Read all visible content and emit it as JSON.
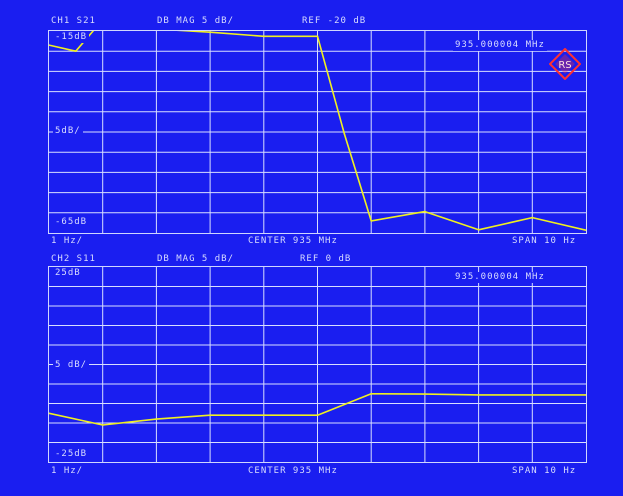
{
  "colors": {
    "background": "#1a1ef0",
    "grid": "#d8deff",
    "trace": "#f0f020",
    "logo": "#ff3030"
  },
  "logo_icon": "rohde-schwarz-logo",
  "charts": [
    {
      "id": "ch1",
      "header": {
        "channel": "CH1  S21",
        "format": "DB  MAG  5  dB/",
        "reference": "REF  -20  dB"
      },
      "marker_readout": "935.000004  MHz",
      "y_labels": {
        "top": "-15dB",
        "middle": "5dB/",
        "bottom": "-65dB"
      },
      "footer": {
        "left": "1  Hz/",
        "center": "CENTER  935  MHz",
        "right": "SPAN  10  Hz"
      }
    },
    {
      "id": "ch2",
      "header": {
        "channel": "CH2  S11",
        "format": "DB  MAG  5  dB/",
        "reference": "REF  0  dB"
      },
      "marker_readout": "935.000004  MHz",
      "y_labels": {
        "top": "25dB",
        "middle": "5 dB/",
        "bottom": "-25dB"
      },
      "footer": {
        "left": "1  Hz/",
        "center": "CENTER  935  MHz",
        "right": "SPAN  10  Hz"
      }
    }
  ],
  "chart_data": [
    {
      "type": "line",
      "xlabel": "",
      "ylabel": "",
      "x": [
        934.999995,
        934.9999955,
        934.999996,
        934.999997,
        934.999998,
        934.999999,
        935.0,
        935.0000005,
        935.000001,
        935.000002,
        935.000003,
        935.000004,
        935.000005
      ],
      "series": [
        {
          "values": [
            -18.5,
            -20,
            -12.2,
            -14.5,
            -15.3,
            -16.3,
            -16.3,
            -40.5,
            -62.0,
            -59.7,
            -64.2,
            -61.2,
            -64.3
          ]
        }
      ],
      "ylim": [
        -65,
        -15
      ],
      "xlim": [
        934.999995,
        935.000005
      ],
      "grid": true
    },
    {
      "type": "line",
      "xlabel": "",
      "ylabel": "",
      "x": [
        934.999995,
        934.999996,
        934.999997,
        934.999998,
        934.999999,
        935.0,
        935.000001,
        935.000002,
        935.000003,
        935.000004,
        935.000005
      ],
      "series": [
        {
          "values": [
            -12.5,
            -15.5,
            -14.0,
            -13.0,
            -13.0,
            -13.0,
            -7.5,
            -7.6,
            -7.8,
            -7.8,
            -7.8
          ]
        }
      ],
      "ylim": [
        -25,
        25
      ],
      "xlim": [
        934.999995,
        935.000005
      ],
      "grid": true
    }
  ]
}
